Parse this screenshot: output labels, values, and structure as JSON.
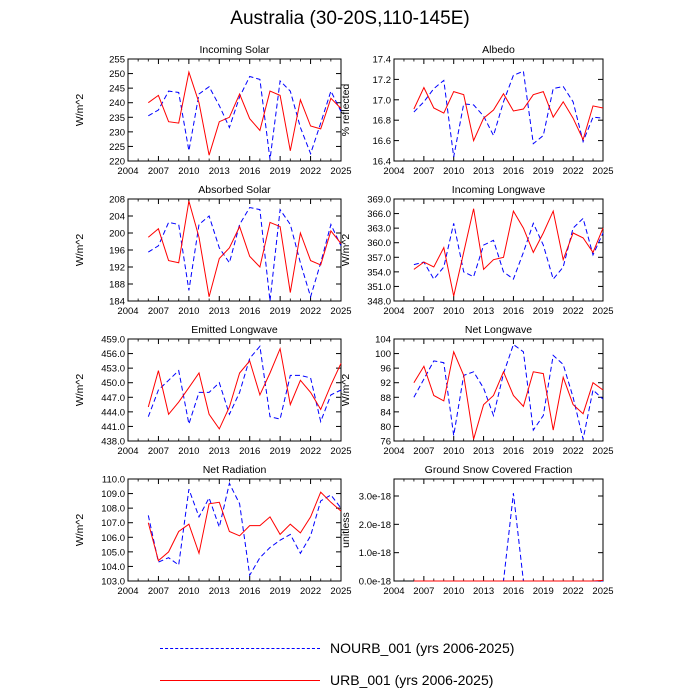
{
  "title": "Australia (30-20S,110-145E)",
  "legend": [
    {
      "label": "NOURB_001 (yrs 2006-2025)",
      "color": "#0000ff",
      "dash": true
    },
    {
      "label": "URB_001 (yrs 2006-2025)",
      "color": "#ff0000",
      "dash": false
    }
  ],
  "chart_data": [
    {
      "type": "line",
      "title": "Incoming Solar",
      "ylabel": "W/m^2",
      "xlim": [
        2004,
        2025
      ],
      "ylim": [
        220,
        255
      ],
      "xticks": [
        "2004",
        "2007",
        "2010",
        "2013",
        "2016",
        "2019",
        "2022",
        "2025"
      ],
      "yticks": [
        "220",
        "225",
        "230",
        "235",
        "240",
        "245",
        "250",
        "255"
      ],
      "x": [
        2006,
        2007,
        2008,
        2009,
        2010,
        2011,
        2012,
        2013,
        2014,
        2015,
        2016,
        2017,
        2018,
        2019,
        2020,
        2021,
        2022,
        2023,
        2024,
        2025
      ],
      "series": [
        {
          "name": "NOURB_001",
          "values": [
            235.5,
            237.5,
            244,
            243.5,
            223.5,
            243,
            245.5,
            239,
            231.5,
            242,
            249,
            248,
            220.5,
            247.5,
            244,
            231.5,
            222.5,
            233,
            244,
            237
          ]
        },
        {
          "name": "URB_001",
          "values": [
            240,
            242.5,
            233.5,
            233,
            250.5,
            240,
            222,
            233.5,
            235,
            243,
            234.5,
            230.5,
            244,
            242.5,
            223.5,
            241,
            232,
            231,
            241.5,
            238
          ]
        }
      ]
    },
    {
      "type": "line",
      "title": "Albedo",
      "ylabel": "% reflected",
      "xlim": [
        2004,
        2025
      ],
      "ylim": [
        16.4,
        17.4
      ],
      "xticks": [
        "2004",
        "2007",
        "2010",
        "2013",
        "2016",
        "2019",
        "2022",
        "2025"
      ],
      "yticks": [
        "16.4",
        "16.6",
        "16.8",
        "17.0",
        "17.2",
        "17.4"
      ],
      "x": [
        2006,
        2007,
        2008,
        2009,
        2010,
        2011,
        2012,
        2013,
        2014,
        2015,
        2016,
        2017,
        2018,
        2019,
        2020,
        2021,
        2022,
        2023,
        2024,
        2025
      ],
      "series": [
        {
          "name": "NOURB_001",
          "values": [
            16.88,
            16.98,
            17.11,
            17.19,
            16.44,
            16.96,
            16.95,
            16.84,
            16.65,
            16.98,
            17.24,
            17.28,
            16.57,
            16.65,
            17.11,
            17.13,
            16.98,
            16.59,
            16.83,
            16.82
          ]
        },
        {
          "name": "URB_001",
          "values": [
            16.91,
            17.12,
            16.92,
            16.87,
            17.08,
            17.05,
            16.6,
            16.82,
            16.9,
            17.06,
            16.89,
            16.91,
            17.05,
            17.08,
            16.83,
            16.98,
            16.82,
            16.61,
            16.94,
            16.92
          ]
        }
      ]
    },
    {
      "type": "line",
      "title": "Absorbed Solar",
      "ylabel": "W/m^2",
      "xlim": [
        2004,
        2025
      ],
      "ylim": [
        184,
        208
      ],
      "xticks": [
        "2004",
        "2007",
        "2010",
        "2013",
        "2016",
        "2019",
        "2022",
        "2025"
      ],
      "yticks": [
        "184",
        "188",
        "192",
        "196",
        "200",
        "204",
        "208"
      ],
      "x": [
        2006,
        2007,
        2008,
        2009,
        2010,
        2011,
        2012,
        2013,
        2014,
        2015,
        2016,
        2017,
        2018,
        2019,
        2020,
        2021,
        2022,
        2023,
        2024,
        2025
      ],
      "series": [
        {
          "name": "NOURB_001",
          "values": [
            195.5,
            197,
            202.5,
            202,
            186.5,
            202,
            204,
            196.5,
            193,
            202,
            206,
            205.5,
            184,
            205.5,
            202,
            193,
            185,
            193,
            202,
            197
          ]
        },
        {
          "name": "URB_001",
          "values": [
            199,
            201,
            193.5,
            193,
            207.5,
            199,
            185,
            194,
            196.5,
            201.5,
            194.5,
            192,
            202.5,
            201.5,
            186,
            200,
            193.5,
            192.5,
            200.5,
            197.5
          ]
        }
      ]
    },
    {
      "type": "line",
      "title": "Incoming Longwave",
      "ylabel": "W/m^2",
      "xlim": [
        2004,
        2025
      ],
      "ylim": [
        348,
        369
      ],
      "xticks": [
        "2004",
        "2007",
        "2010",
        "2013",
        "2016",
        "2019",
        "2022",
        "2025"
      ],
      "yticks": [
        "348.0",
        "351.0",
        "354.0",
        "357.0",
        "360.0",
        "363.0",
        "366.0",
        "369.0"
      ],
      "x": [
        2006,
        2007,
        2008,
        2009,
        2010,
        2011,
        2012,
        2013,
        2014,
        2015,
        2016,
        2017,
        2018,
        2019,
        2020,
        2021,
        2022,
        2023,
        2024,
        2025
      ],
      "series": [
        {
          "name": "NOURB_001",
          "values": [
            355.5,
            356,
            352.5,
            355,
            364,
            354,
            353,
            359.5,
            360.5,
            354,
            352.5,
            358,
            364,
            359.5,
            352.5,
            355,
            363,
            365,
            357.5,
            362
          ]
        },
        {
          "name": "URB_001",
          "values": [
            354.5,
            356,
            355,
            359,
            349,
            358,
            367,
            354.5,
            356.5,
            357,
            366.5,
            363,
            358,
            362,
            366.5,
            356.5,
            362,
            361,
            358,
            363
          ]
        }
      ]
    },
    {
      "type": "line",
      "title": "Emitted Longwave",
      "ylabel": "W/m^2",
      "xlim": [
        2004,
        2025
      ],
      "ylim": [
        438,
        459
      ],
      "xticks": [
        "2004",
        "2007",
        "2010",
        "2013",
        "2016",
        "2019",
        "2022",
        "2025"
      ],
      "yticks": [
        "438.0",
        "441.0",
        "444.0",
        "447.0",
        "450.0",
        "453.0",
        "456.0",
        "459.0"
      ],
      "x": [
        2006,
        2007,
        2008,
        2009,
        2010,
        2011,
        2012,
        2013,
        2014,
        2015,
        2016,
        2017,
        2018,
        2019,
        2020,
        2021,
        2022,
        2023,
        2024,
        2025
      ],
      "series": [
        {
          "name": "NOURB_001",
          "values": [
            443,
            448.5,
            450.5,
            452.5,
            441.5,
            448,
            448,
            450,
            443.5,
            448,
            455,
            457.5,
            443,
            442.5,
            451.5,
            451.5,
            451,
            442,
            447.5,
            448.5
          ]
        },
        {
          "name": "URB_001",
          "values": [
            445,
            452.5,
            443.5,
            446,
            449,
            452,
            443.5,
            440.5,
            445,
            452,
            454.5,
            447.5,
            452,
            457,
            445.5,
            450.5,
            448,
            444.5,
            449.5,
            454
          ]
        }
      ]
    },
    {
      "type": "line",
      "title": "Net Longwave",
      "ylabel": "W/m^2",
      "xlim": [
        2004,
        2025
      ],
      "ylim": [
        76,
        104
      ],
      "xticks": [
        "2004",
        "2007",
        "2010",
        "2013",
        "2016",
        "2019",
        "2022",
        "2025"
      ],
      "yticks": [
        "76",
        "80",
        "84",
        "88",
        "92",
        "96",
        "100",
        "104"
      ],
      "x": [
        2006,
        2007,
        2008,
        2009,
        2010,
        2011,
        2012,
        2013,
        2014,
        2015,
        2016,
        2017,
        2018,
        2019,
        2020,
        2021,
        2022,
        2023,
        2024,
        2025
      ],
      "series": [
        {
          "name": "NOURB_001",
          "values": [
            88,
            93,
            98,
            97.5,
            77.5,
            94,
            95,
            90.5,
            83,
            94.5,
            102.5,
            100.5,
            79,
            83,
            99.5,
            97,
            88,
            76.5,
            90,
            87.5
          ]
        },
        {
          "name": "URB_001",
          "values": [
            92,
            96.5,
            88.5,
            87,
            100.5,
            94,
            76.5,
            86,
            88.5,
            95,
            88.5,
            85.5,
            95,
            94.5,
            79,
            93.5,
            86,
            83.5,
            92,
            90
          ]
        }
      ]
    },
    {
      "type": "line",
      "title": "Net Radiation",
      "ylabel": "W/m^2",
      "xlim": [
        2004,
        2025
      ],
      "ylim": [
        103,
        110
      ],
      "xticks": [
        "2004",
        "2007",
        "2010",
        "2013",
        "2016",
        "2019",
        "2022",
        "2025"
      ],
      "yticks": [
        "103.0",
        "104.0",
        "105.0",
        "106.0",
        "107.0",
        "108.0",
        "109.0",
        "110.0"
      ],
      "x": [
        2006,
        2007,
        2008,
        2009,
        2010,
        2011,
        2012,
        2013,
        2014,
        2015,
        2016,
        2017,
        2018,
        2019,
        2020,
        2021,
        2022,
        2023,
        2024,
        2025
      ],
      "series": [
        {
          "name": "NOURB_001",
          "values": [
            107.5,
            104.3,
            104.6,
            104.1,
            109.3,
            107.4,
            108.7,
            106.7,
            109.7,
            108.3,
            103.4,
            104.6,
            105.3,
            105.8,
            106.2,
            104.9,
            106.1,
            108.5,
            108.9,
            108
          ]
        },
        {
          "name": "URB_001",
          "values": [
            107,
            104.4,
            105,
            106.4,
            106.9,
            104.9,
            108.3,
            108.4,
            106.4,
            106.1,
            106.8,
            106.8,
            107.4,
            106.2,
            106.9,
            106.3,
            107.4,
            109.1,
            108.4,
            107.8
          ]
        }
      ]
    },
    {
      "type": "line",
      "title": "Ground Snow Covered Fraction",
      "ylabel": "unitless",
      "xlim": [
        2004,
        2025
      ],
      "ylim": [
        0,
        3.6e-18
      ],
      "xticks": [
        "2004",
        "2007",
        "2010",
        "2013",
        "2016",
        "2019",
        "2022",
        "2025"
      ],
      "yticks": [
        "0.0e-18",
        "1.0e-18",
        "2.0e-18",
        "3.0e-18"
      ],
      "x": [
        2006,
        2007,
        2008,
        2009,
        2010,
        2011,
        2012,
        2013,
        2014,
        2015,
        2016,
        2017,
        2018,
        2019,
        2020,
        2021,
        2022,
        2023,
        2024,
        2025
      ],
      "series": [
        {
          "name": "NOURB_001",
          "values": [
            0,
            0,
            0,
            0,
            0,
            0,
            0,
            0,
            0,
            0,
            3.1e-18,
            0,
            0,
            0,
            0,
            0,
            0,
            0,
            0,
            0
          ]
        },
        {
          "name": "URB_001",
          "values": [
            0,
            0,
            0,
            0,
            0,
            0,
            0,
            0,
            0,
            0,
            0,
            0,
            0,
            0,
            0,
            0,
            0,
            0,
            0,
            2e-20
          ]
        }
      ]
    }
  ]
}
